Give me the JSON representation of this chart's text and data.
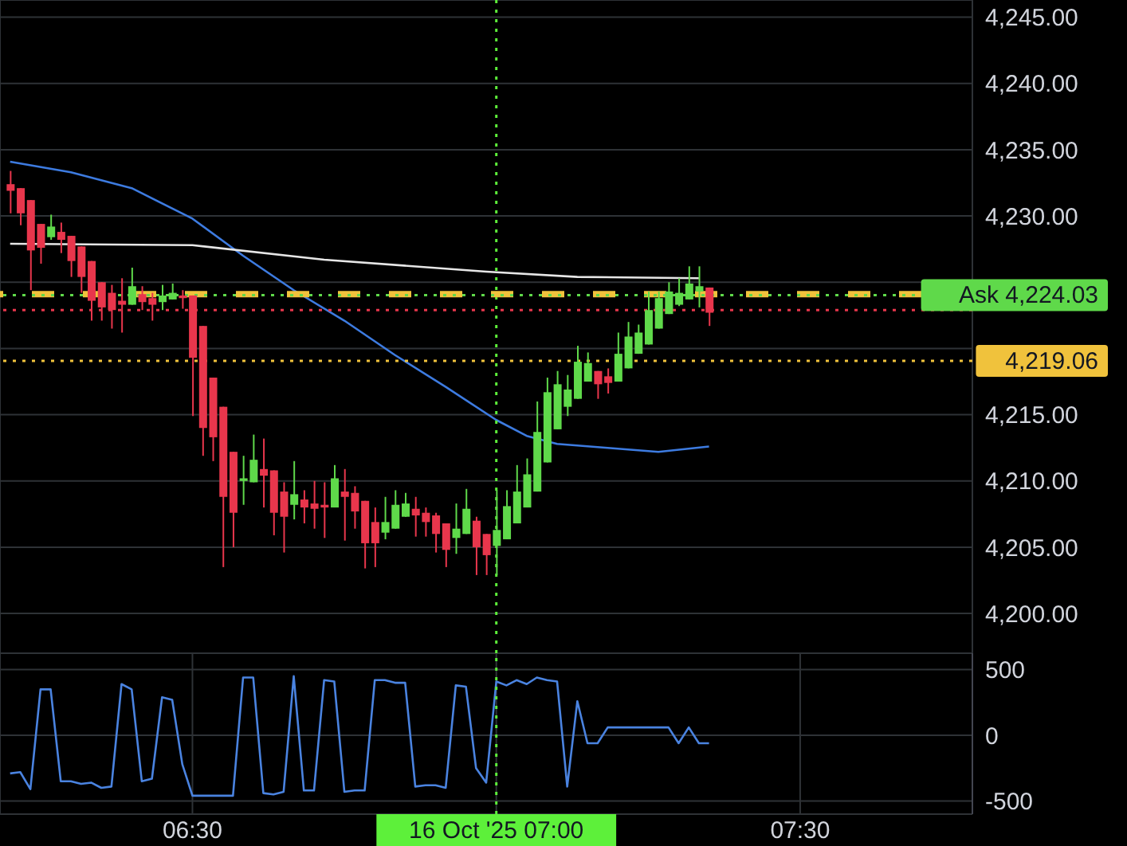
{
  "chart_data": [
    {
      "type": "candlestick",
      "x": [
        "2025-10-16T06:12",
        "2025-10-16T06:13",
        "2025-10-16T06:14",
        "2025-10-16T06:15",
        "2025-10-16T06:16",
        "2025-10-16T06:17",
        "2025-10-16T06:18",
        "2025-10-16T06:19",
        "2025-10-16T06:20",
        "2025-10-16T06:21",
        "2025-10-16T06:22",
        "2025-10-16T06:23",
        "2025-10-16T06:24",
        "2025-10-16T06:25",
        "2025-10-16T06:26",
        "2025-10-16T06:27",
        "2025-10-16T06:28",
        "2025-10-16T06:29",
        "2025-10-16T06:30",
        "2025-10-16T06:31",
        "2025-10-16T06:32",
        "2025-10-16T06:33",
        "2025-10-16T06:34",
        "2025-10-16T06:35",
        "2025-10-16T06:36",
        "2025-10-16T06:37",
        "2025-10-16T06:38",
        "2025-10-16T06:39",
        "2025-10-16T06:40",
        "2025-10-16T06:41",
        "2025-10-16T06:42",
        "2025-10-16T06:43",
        "2025-10-16T06:44",
        "2025-10-16T06:45",
        "2025-10-16T06:46",
        "2025-10-16T06:47",
        "2025-10-16T06:48",
        "2025-10-16T06:49",
        "2025-10-16T06:50",
        "2025-10-16T06:51",
        "2025-10-16T06:52",
        "2025-10-16T06:53",
        "2025-10-16T06:54",
        "2025-10-16T06:55",
        "2025-10-16T06:56",
        "2025-10-16T06:57",
        "2025-10-16T06:58",
        "2025-10-16T06:59",
        "2025-10-16T07:00",
        "2025-10-16T07:01",
        "2025-10-16T07:02",
        "2025-10-16T07:03",
        "2025-10-16T07:04",
        "2025-10-16T07:05",
        "2025-10-16T07:06",
        "2025-10-16T07:07",
        "2025-10-16T07:08",
        "2025-10-16T07:09",
        "2025-10-16T07:10",
        "2025-10-16T07:11",
        "2025-10-16T07:12",
        "2025-10-16T07:13",
        "2025-10-16T07:14",
        "2025-10-16T07:15",
        "2025-10-16T07:16",
        "2025-10-16T07:17",
        "2025-10-16T07:18",
        "2025-10-16T07:19",
        "2025-10-16T07:20",
        "2025-10-16T07:21"
      ],
      "ohlc": [
        [
          4232.4,
          4233.4,
          4230.2,
          4231.9
        ],
        [
          4232.1,
          4232.1,
          4229.3,
          4230.2
        ],
        [
          4231.2,
          4231.2,
          4224.4,
          4227.4
        ],
        [
          4229.4,
          4229.4,
          4226.4,
          4227.6
        ],
        [
          4228.4,
          4230.1,
          4228.2,
          4229.2
        ],
        [
          4228.8,
          4229.5,
          4227.2,
          4228.2
        ],
        [
          4228.5,
          4228.5,
          4225.4,
          4226.6
        ],
        [
          4227.7,
          4227.7,
          4224.2,
          4225.4
        ],
        [
          4226.6,
          4226.6,
          4222.1,
          4223.6
        ],
        [
          4225.0,
          4225.0,
          4222.1,
          4223.1
        ],
        [
          4224.2,
          4224.8,
          4221.5,
          4222.9
        ],
        [
          4223.6,
          4225.3,
          4221.2,
          4223.3
        ],
        [
          4223.3,
          4226.1,
          4223.3,
          4224.7
        ],
        [
          4224.1,
          4224.7,
          4222.9,
          4223.5
        ],
        [
          4223.8,
          4224.2,
          4222.1,
          4223.3
        ],
        [
          4223.5,
          4224.8,
          4222.9,
          4224.0
        ],
        [
          4223.7,
          4224.9,
          4223.7,
          4224.2
        ],
        [
          4224.0,
          4224.4,
          4223.0,
          4223.8
        ],
        [
          4224.0,
          4224.0,
          4214.9,
          4219.3
        ],
        [
          4221.7,
          4221.7,
          4211.9,
          4214.0
        ],
        [
          4217.8,
          4217.8,
          4211.5,
          4213.3
        ],
        [
          4215.6,
          4215.6,
          4203.5,
          4208.8
        ],
        [
          4212.2,
          4212.2,
          4205.0,
          4207.6
        ],
        [
          4210.0,
          4211.9,
          4208.2,
          4210.2
        ],
        [
          4209.9,
          4213.5,
          4209.9,
          4211.6
        ],
        [
          4210.9,
          4213.2,
          4208.0,
          4210.4
        ],
        [
          4210.8,
          4210.8,
          4205.9,
          4207.6
        ],
        [
          4209.2,
          4209.9,
          4204.6,
          4207.3
        ],
        [
          4208.2,
          4211.5,
          4207.1,
          4209.0
        ],
        [
          4208.6,
          4209.3,
          4206.8,
          4208.0
        ],
        [
          4208.3,
          4210.0,
          4206.4,
          4207.9
        ],
        [
          4208.2,
          4209.9,
          4205.7,
          4208.0
        ],
        [
          4208.0,
          4211.2,
          4208.0,
          4210.2
        ],
        [
          4209.2,
          4210.9,
          4205.5,
          4208.8
        ],
        [
          4209.1,
          4209.6,
          4206.4,
          4207.7
        ],
        [
          4208.5,
          4208.5,
          4203.4,
          4205.3
        ],
        [
          4206.9,
          4208.0,
          4203.5,
          4205.3
        ],
        [
          4206.1,
          4208.8,
          4205.6,
          4206.9
        ],
        [
          4206.4,
          4209.3,
          4206.4,
          4208.2
        ],
        [
          4207.3,
          4209.1,
          4207.3,
          4208.3
        ],
        [
          4207.9,
          4208.8,
          4205.8,
          4207.4
        ],
        [
          4207.6,
          4208.0,
          4205.8,
          4206.9
        ],
        [
          4207.4,
          4207.6,
          4204.6,
          4206.0
        ],
        [
          4206.8,
          4206.8,
          4203.5,
          4204.8
        ],
        [
          4205.7,
          4208.3,
          4204.5,
          4206.4
        ],
        [
          4206.0,
          4209.4,
          4206.0,
          4207.9
        ],
        [
          4207.0,
          4207.3,
          4202.9,
          4205.0
        ],
        [
          4206.0,
          4206.0,
          4202.9,
          4204.4
        ],
        [
          4205.1,
          4209.3,
          4202.9,
          4206.3
        ],
        [
          4205.6,
          4209.3,
          4205.6,
          4208.1
        ],
        [
          4206.8,
          4211.2,
          4206.8,
          4209.2
        ],
        [
          4208.0,
          4211.7,
          4208.0,
          4210.5
        ],
        [
          4209.2,
          4216.0,
          4209.2,
          4213.7
        ],
        [
          4211.4,
          4217.8,
          4211.4,
          4216.7
        ],
        [
          4213.9,
          4218.3,
          4213.9,
          4217.3
        ],
        [
          4215.6,
          4218.0,
          4214.9,
          4216.9
        ],
        [
          4216.2,
          4220.2,
          4216.2,
          4219.0
        ],
        [
          4217.5,
          4219.7,
          4217.5,
          4218.9
        ],
        [
          4218.3,
          4218.3,
          4216.2,
          4217.3
        ],
        [
          4217.9,
          4218.5,
          4216.6,
          4217.4
        ],
        [
          4217.5,
          4221.2,
          4217.5,
          4219.6
        ],
        [
          4218.5,
          4222.0,
          4218.5,
          4220.9
        ],
        [
          4219.6,
          4221.8,
          4219.6,
          4221.2
        ],
        [
          4220.3,
          4224.3,
          4220.3,
          4222.9
        ],
        [
          4221.5,
          4224.3,
          4221.5,
          4223.8
        ],
        [
          4222.6,
          4225.0,
          4222.6,
          4224.3
        ],
        [
          4223.3,
          4225.3,
          4223.2,
          4224.2
        ],
        [
          4223.7,
          4226.2,
          4223.7,
          4224.9
        ],
        [
          4224.3,
          4226.2,
          4223.1,
          4224.7
        ],
        [
          4224.6,
          4224.6,
          4221.7,
          4222.7
        ]
      ],
      "colors": [
        "#e8364c",
        "#e8364c",
        "#e8364c",
        "#e8364c",
        "#5fd94a",
        "#e8364c",
        "#e8364c",
        "#e8364c",
        "#e8364c",
        "#e8364c",
        "#e8364c",
        "#e8364c",
        "#5fd94a",
        "#e8364c",
        "#e8364c",
        "#5fd94a",
        "#5fd94a",
        "#e8364c",
        "#e8364c",
        "#e8364c",
        "#e8364c",
        "#e8364c",
        "#e8364c",
        "#5fd94a",
        "#5fd94a",
        "#e8364c",
        "#e8364c",
        "#e8364c",
        "#5fd94a",
        "#e8364c",
        "#e8364c",
        "#e8364c",
        "#5fd94a",
        "#e8364c",
        "#e8364c",
        "#e8364c",
        "#e8364c",
        "#5fd94a",
        "#5fd94a",
        "#5fd94a",
        "#e8364c",
        "#e8364c",
        "#e8364c",
        "#e8364c",
        "#5fd94a",
        "#5fd94a",
        "#e8364c",
        "#e8364c",
        "#5fd94a",
        "#5fd94a",
        "#5fd94a",
        "#5fd94a",
        "#5fd94a",
        "#5fd94a",
        "#5fd94a",
        "#5fd94a",
        "#5fd94a",
        "#5fd94a",
        "#e8364c",
        "#e8364c",
        "#5fd94a",
        "#5fd94a",
        "#5fd94a",
        "#5fd94a",
        "#5fd94a",
        "#5fd94a",
        "#5fd94a",
        "#5fd94a",
        "#5fd94a",
        "#e8364c"
      ],
      "series": [
        {
          "type": "line",
          "color": "#3d7be0",
          "x": [
            "2025-10-16T06:12",
            "2025-10-16T06:18",
            "2025-10-16T06:24",
            "2025-10-16T06:30",
            "2025-10-16T06:35",
            "2025-10-16T06:40",
            "2025-10-16T06:45",
            "2025-10-16T06:50",
            "2025-10-16T06:55",
            "2025-10-16T07:00",
            "2025-10-16T07:03",
            "2025-10-16T07:06",
            "2025-10-16T07:11",
            "2025-10-16T07:16",
            "2025-10-16T07:21"
          ],
          "values": [
            4234.1,
            4233.3,
            4232.1,
            4229.8,
            4227.0,
            4224.4,
            4222.1,
            4219.5,
            4217.1,
            4214.6,
            4213.4,
            4212.8,
            4212.5,
            4212.2,
            4212.6
          ]
        },
        {
          "type": "line",
          "color": "#e6e6e6",
          "x": [
            "2025-10-16T06:12",
            "2025-10-16T06:30",
            "2025-10-16T06:43",
            "2025-10-16T06:59",
            "2025-10-16T07:08",
            "2025-10-16T07:20"
          ],
          "values": [
            4227.9,
            4227.8,
            4226.7,
            4225.8,
            4225.4,
            4225.3
          ]
        }
      ],
      "xlim": [
        "2025-10-16T06:11",
        "2025-10-16T07:47"
      ],
      "xticks": [
        "2025-10-16T06:30",
        "2025-10-16T07:00",
        "2025-10-16T07:30"
      ],
      "ylim": [
        4197,
        4246.3
      ],
      "yticks": [
        {
          "value": 4200,
          "label": "4,200.00"
        },
        {
          "value": 4205,
          "label": "4,205.00"
        },
        {
          "value": 4210,
          "label": "4,210.00"
        },
        {
          "value": 4215,
          "label": "4,215.00"
        },
        {
          "value": 4220,
          "label": null
        },
        {
          "value": 4225,
          "label": null
        },
        {
          "value": 4230,
          "label": "4,230.00"
        },
        {
          "value": 4235,
          "label": "4,235.00"
        },
        {
          "value": 4240,
          "label": "4,240.00"
        },
        {
          "value": 4245,
          "label": "4,245.00"
        }
      ],
      "grid": true,
      "tick_labels": "y",
      "ref_lines": [
        {
          "axis": "x",
          "value": "2025-10-16T07:00",
          "color": "#5df03a",
          "line_style": "dotted"
        },
        {
          "axis": "y",
          "value": 4222.9,
          "color": "#e8364c",
          "line_style": "dotted"
        },
        {
          "axis": "y",
          "value": 4224.1,
          "color": "#f0c23c",
          "line_style": "dashed"
        },
        {
          "axis": "y",
          "value": 4224.03,
          "label": "Ask 4,224.03",
          "color": "#5fd94a",
          "line_style": "dotted"
        },
        {
          "axis": "y",
          "value": 4219.06,
          "label": "4,219.06",
          "color": "#f0c23c",
          "line_style": "dotted"
        }
      ]
    },
    {
      "type": "line",
      "x": [
        "2025-10-16T06:12",
        "2025-10-16T06:13",
        "2025-10-16T06:14",
        "2025-10-16T06:15",
        "2025-10-16T06:16",
        "2025-10-16T06:17",
        "2025-10-16T06:18",
        "2025-10-16T06:19",
        "2025-10-16T06:20",
        "2025-10-16T06:21",
        "2025-10-16T06:22",
        "2025-10-16T06:23",
        "2025-10-16T06:24",
        "2025-10-16T06:25",
        "2025-10-16T06:26",
        "2025-10-16T06:27",
        "2025-10-16T06:28",
        "2025-10-16T06:29",
        "2025-10-16T06:30",
        "2025-10-16T06:31",
        "2025-10-16T06:32",
        "2025-10-16T06:33",
        "2025-10-16T06:34",
        "2025-10-16T06:35",
        "2025-10-16T06:36",
        "2025-10-16T06:37",
        "2025-10-16T06:38",
        "2025-10-16T06:39",
        "2025-10-16T06:40",
        "2025-10-16T06:41",
        "2025-10-16T06:42",
        "2025-10-16T06:43",
        "2025-10-16T06:44",
        "2025-10-16T06:45",
        "2025-10-16T06:46",
        "2025-10-16T06:47",
        "2025-10-16T06:48",
        "2025-10-16T06:49",
        "2025-10-16T06:50",
        "2025-10-16T06:51",
        "2025-10-16T06:52",
        "2025-10-16T06:53",
        "2025-10-16T06:54",
        "2025-10-16T06:55",
        "2025-10-16T06:56",
        "2025-10-16T06:57",
        "2025-10-16T06:58",
        "2025-10-16T06:59",
        "2025-10-16T07:00",
        "2025-10-16T07:01",
        "2025-10-16T07:02",
        "2025-10-16T07:03",
        "2025-10-16T07:04",
        "2025-10-16T07:05",
        "2025-10-16T07:06",
        "2025-10-16T07:07",
        "2025-10-16T07:08",
        "2025-10-16T07:09",
        "2025-10-16T07:10",
        "2025-10-16T07:11",
        "2025-10-16T07:12",
        "2025-10-16T07:13",
        "2025-10-16T07:14",
        "2025-10-16T07:15",
        "2025-10-16T07:16",
        "2025-10-16T07:17",
        "2025-10-16T07:18",
        "2025-10-16T07:19",
        "2025-10-16T07:20",
        "2025-10-16T07:21"
      ],
      "series": [
        {
          "color": "#4a83e0",
          "values": [
            -290,
            -280,
            -410,
            350,
            350,
            -350,
            -350,
            -370,
            -360,
            -400,
            -390,
            390,
            350,
            -350,
            -330,
            290,
            270,
            -220,
            -460,
            -460,
            -460,
            -460,
            -460,
            440,
            440,
            -440,
            -450,
            -430,
            450,
            -420,
            -420,
            420,
            410,
            -430,
            -420,
            -420,
            420,
            420,
            400,
            400,
            -390,
            -380,
            -380,
            -400,
            380,
            370,
            -250,
            -360,
            410,
            380,
            420,
            390,
            440,
            420,
            410,
            -390,
            260,
            -60,
            -60,
            60,
            60,
            60,
            60,
            60,
            60,
            60,
            -60,
            60,
            -60,
            -60
          ]
        }
      ],
      "xlim": [
        "2025-10-16T06:11",
        "2025-10-16T07:47"
      ],
      "xticks": [
        {
          "value": "2025-10-16T06:30",
          "label": "06:30"
        },
        {
          "value": "2025-10-16T07:00",
          "label": "16 Oct '25 07:00"
        },
        {
          "value": "2025-10-16T07:30",
          "label": "07:30"
        }
      ],
      "ylim": [
        -600,
        625
      ],
      "yticks": [
        500,
        0,
        -500
      ],
      "grid": true,
      "ref_lines": [
        {
          "axis": "x",
          "value": "2025-10-16T07:00",
          "color": "#5df03a",
          "line_style": "dotted"
        }
      ]
    }
  ]
}
